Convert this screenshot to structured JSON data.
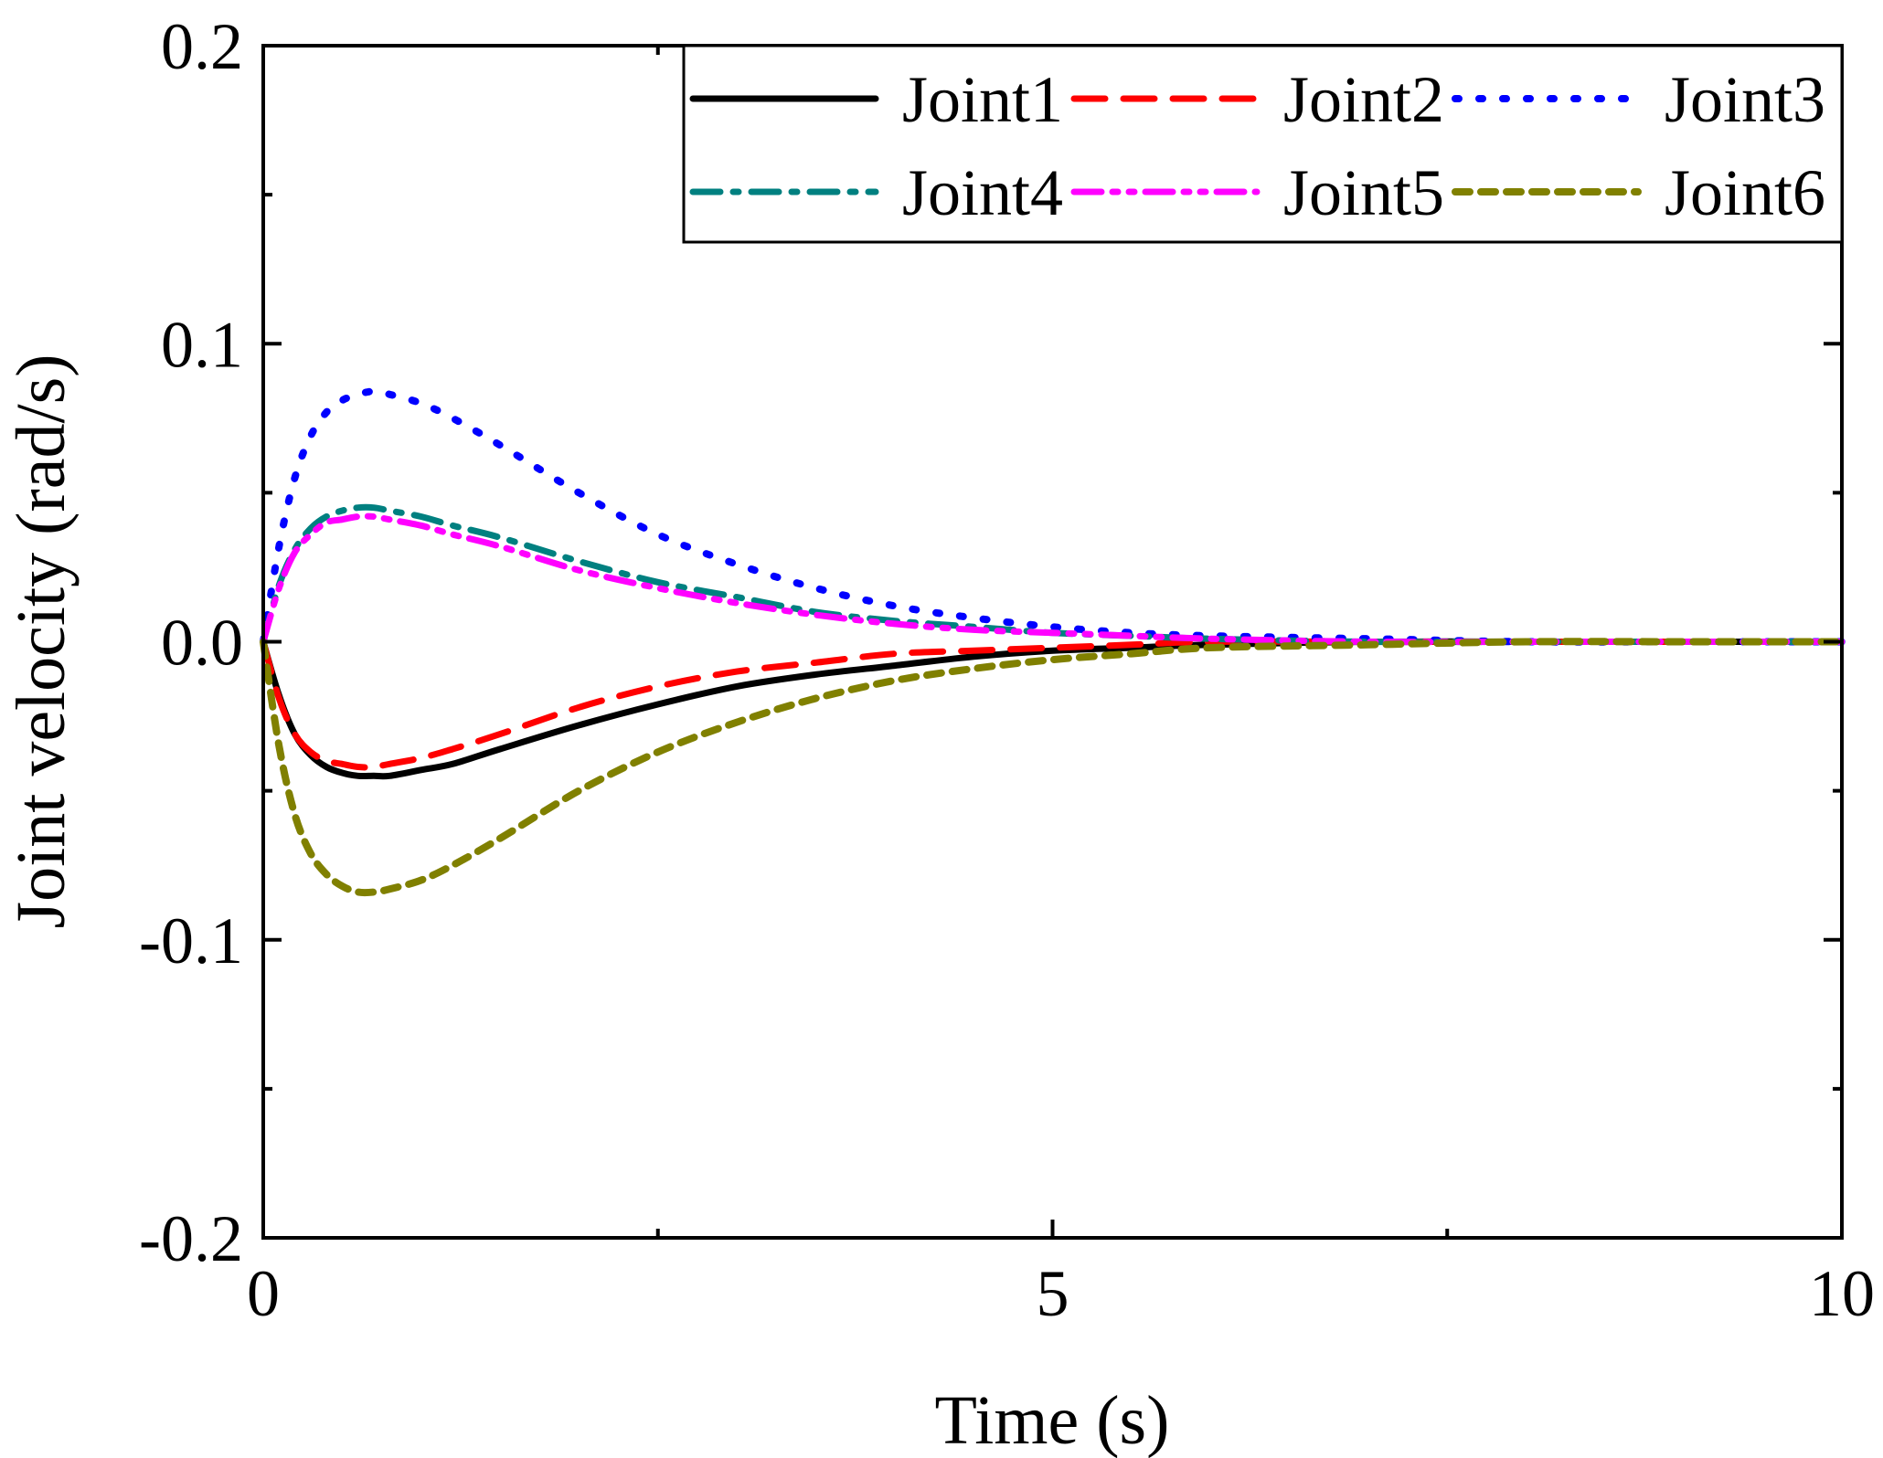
{
  "chart_data": {
    "type": "line",
    "title": "",
    "xlabel": "Time (s)",
    "ylabel": "Joint velocity (rad/s)",
    "xlim": [
      0,
      10
    ],
    "ylim": [
      -0.2,
      0.2
    ],
    "xticks": [
      0,
      5,
      10
    ],
    "xtick_labels": [
      "0",
      "5",
      "10"
    ],
    "yticks": [
      0.2,
      0.1,
      0.0,
      -0.1,
      -0.2
    ],
    "ytick_labels": [
      "0.2",
      "0.1",
      "0.0",
      "-0.1",
      "-0.2"
    ],
    "grid": false,
    "legend_position": "top-right",
    "x": [
      0,
      0.1,
      0.2,
      0.3,
      0.4,
      0.5,
      0.6,
      0.7,
      0.8,
      1.0,
      1.2,
      1.5,
      2.0,
      2.5,
      3.0,
      3.5,
      4.0,
      4.5,
      5.0,
      5.5,
      6.0,
      7.0,
      8.0,
      9.0,
      10.0
    ],
    "series": [
      {
        "name": "Joint1",
        "color": "#000000",
        "dash": "solid",
        "values": [
          0,
          -0.018,
          -0.031,
          -0.038,
          -0.042,
          -0.044,
          -0.045,
          -0.045,
          -0.045,
          -0.043,
          -0.041,
          -0.036,
          -0.028,
          -0.021,
          -0.015,
          -0.011,
          -0.008,
          -0.005,
          -0.003,
          -0.002,
          -0.001,
          0,
          0,
          0,
          0
        ]
      },
      {
        "name": "Joint2",
        "color": "#ff0000",
        "dash": "dash",
        "values": [
          0,
          -0.019,
          -0.031,
          -0.037,
          -0.04,
          -0.041,
          -0.042,
          -0.042,
          -0.041,
          -0.039,
          -0.036,
          -0.031,
          -0.022,
          -0.015,
          -0.01,
          -0.007,
          -0.004,
          -0.003,
          -0.002,
          -0.001,
          0,
          0,
          0,
          0,
          0
        ]
      },
      {
        "name": "Joint3",
        "color": "#0000ff",
        "dash": "dot",
        "values": [
          0,
          0.032,
          0.055,
          0.069,
          0.077,
          0.081,
          0.083,
          0.084,
          0.083,
          0.08,
          0.075,
          0.066,
          0.05,
          0.036,
          0.026,
          0.018,
          0.012,
          0.008,
          0.005,
          0.003,
          0.002,
          0.001,
          0,
          0,
          0
        ]
      },
      {
        "name": "Joint4",
        "color": "#008080",
        "dash": "dashdot",
        "values": [
          0,
          0.019,
          0.031,
          0.038,
          0.042,
          0.044,
          0.045,
          0.045,
          0.044,
          0.042,
          0.039,
          0.035,
          0.027,
          0.02,
          0.015,
          0.01,
          0.007,
          0.005,
          0.003,
          0.002,
          0.001,
          0,
          0,
          0,
          0
        ]
      },
      {
        "name": "Joint5",
        "color": "#ff00ff",
        "dash": "dashdotdot",
        "values": [
          0,
          0.018,
          0.03,
          0.036,
          0.04,
          0.041,
          0.042,
          0.042,
          0.041,
          0.039,
          0.036,
          0.032,
          0.024,
          0.018,
          0.013,
          0.009,
          0.006,
          0.004,
          0.003,
          0.002,
          0.001,
          0,
          0,
          0,
          0
        ]
      },
      {
        "name": "Joint6",
        "color": "#808000",
        "dash": "shortdash",
        "values": [
          0,
          -0.035,
          -0.058,
          -0.071,
          -0.078,
          -0.082,
          -0.084,
          -0.084,
          -0.083,
          -0.08,
          -0.075,
          -0.066,
          -0.05,
          -0.037,
          -0.027,
          -0.019,
          -0.013,
          -0.009,
          -0.006,
          -0.004,
          -0.002,
          -0.001,
          0,
          0,
          0
        ]
      }
    ]
  }
}
